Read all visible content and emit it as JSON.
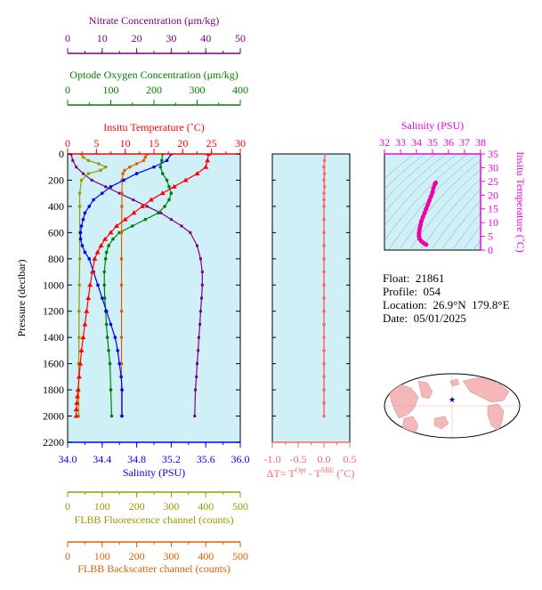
{
  "info": {
    "float": "Float:  21861",
    "profile": "Profile:  054",
    "location": "Location:  26.9°N  179.8°E",
    "date": "Date:  05/01/2025"
  },
  "colors": {
    "temperature": "#ff0000",
    "salinity": "#0000ff",
    "nitrate": "#800080",
    "oxygen": "#008000",
    "fluorescence": "#999900",
    "backscatter": "#e06000",
    "delta": "#ff6666",
    "ts_axis": "#ee00ee",
    "panel_bg": "#d0f0f8"
  },
  "chart_data": [
    {
      "type": "line",
      "name": "main-profile",
      "ylabel": "Pressure (decibar)",
      "ylim": [
        0,
        2200
      ],
      "y_ticks": [
        "0",
        "200",
        "400",
        "600",
        "800",
        "1000",
        "1200",
        "1400",
        "1600",
        "1800",
        "2000",
        "2200"
      ],
      "axes": {
        "nitrate": {
          "label": "Nitrate Concentration (μm/kg)",
          "lim": [
            0,
            50
          ],
          "ticks": [
            "0",
            "10",
            "20",
            "30",
            "40",
            "50"
          ]
        },
        "oxygen": {
          "label": "Optode Oxygen Concentration (μm/kg)",
          "lim": [
            0,
            400
          ],
          "ticks": [
            "0",
            "100",
            "200",
            "300",
            "400"
          ]
        },
        "temperature": {
          "label": "Insitu Temperature (˚C)",
          "lim": [
            0,
            30
          ],
          "ticks": [
            "0",
            "5",
            "10",
            "15",
            "20",
            "25",
            "30"
          ]
        },
        "salinity": {
          "label": "Salinity (PSU)",
          "lim": [
            34.0,
            36.0
          ],
          "ticks": [
            "34.0",
            "34.4",
            "34.8",
            "35.2",
            "35.6",
            "36.0"
          ]
        },
        "fluorescence": {
          "label": "FLBB Fluorescence channel (counts)",
          "lim": [
            0,
            500
          ],
          "ticks": [
            "0",
            "100",
            "200",
            "300",
            "400",
            "500"
          ]
        },
        "backscatter": {
          "label": "FLBB Backscatter channel (counts)",
          "lim": [
            0,
            500
          ],
          "ticks": [
            "0",
            "100",
            "200",
            "300",
            "400",
            "500"
          ]
        }
      },
      "series": {
        "temperature": {
          "x": [
            24.5,
            24.3,
            24.0,
            22.5,
            20.5,
            18.5,
            16.5,
            14.5,
            13.0,
            11.5,
            10.0,
            8.5,
            7.5,
            6.5,
            5.8,
            5.2,
            4.7,
            4.3,
            3.9,
            3.6,
            3.3,
            3.0,
            2.7,
            2.4,
            2.2,
            2.0,
            1.8,
            1.7,
            1.6,
            1.5,
            1.5
          ],
          "y": [
            0,
            50,
            100,
            150,
            200,
            250,
            300,
            350,
            400,
            450,
            500,
            550,
            600,
            650,
            700,
            750,
            800,
            900,
            1000,
            1100,
            1200,
            1300,
            1400,
            1500,
            1600,
            1700,
            1800,
            1850,
            1900,
            1950,
            2000
          ]
        },
        "salinity": {
          "x": [
            35.2,
            35.15,
            35.0,
            34.8,
            34.65,
            34.5,
            34.4,
            34.3,
            34.25,
            34.2,
            34.18,
            34.16,
            34.15,
            34.15,
            34.17,
            34.2,
            34.25,
            34.3,
            34.35,
            34.4,
            34.45,
            34.5,
            34.55,
            34.58,
            34.6,
            34.62,
            34.63,
            34.63
          ],
          "y": [
            0,
            50,
            100,
            150,
            200,
            250,
            300,
            350,
            400,
            450,
            500,
            550,
            600,
            650,
            700,
            750,
            800,
            900,
            1000,
            1100,
            1200,
            1300,
            1400,
            1500,
            1600,
            1700,
            1800,
            2000
          ]
        },
        "nitrate": {
          "x": [
            1.0,
            1.5,
            2.5,
            4.5,
            7.0,
            11.0,
            15.0,
            19.0,
            23.0,
            27.0,
            30.0,
            33.0,
            35.5,
            37.5,
            38.5,
            39.0,
            39.0,
            38.8,
            38.5,
            38.3,
            38.0,
            37.8,
            37.5,
            37.3,
            37.0,
            36.8
          ],
          "y": [
            0,
            50,
            100,
            150,
            200,
            250,
            300,
            350,
            400,
            450,
            500,
            550,
            600,
            700,
            800,
            900,
            1000,
            1100,
            1200,
            1300,
            1400,
            1500,
            1600,
            1700,
            1800,
            2000
          ]
        },
        "oxygen": {
          "x": [
            220,
            218,
            215,
            220,
            230,
            235,
            240,
            235,
            225,
            210,
            180,
            150,
            120,
            105,
            95,
            90,
            88,
            85,
            85,
            86,
            88,
            90,
            92,
            95,
            98,
            100,
            102
          ],
          "y": [
            0,
            50,
            100,
            150,
            200,
            250,
            300,
            350,
            400,
            450,
            500,
            550,
            600,
            650,
            700,
            750,
            800,
            900,
            1000,
            1100,
            1200,
            1300,
            1400,
            1500,
            1600,
            1800,
            2000
          ]
        },
        "fluorescence": {
          "x": [
            40,
            45,
            60,
            90,
            110,
            95,
            60,
            40,
            35,
            35,
            35,
            35,
            34,
            33,
            33,
            32,
            32,
            32
          ],
          "y": [
            0,
            25,
            50,
            75,
            100,
            125,
            150,
            200,
            300,
            400,
            600,
            800,
            1000,
            1200,
            1400,
            1600,
            1800,
            2000
          ]
        },
        "backscatter": {
          "x": [
            230,
            225,
            220,
            200,
            180,
            165,
            160,
            158,
            157,
            157,
            156,
            156,
            156,
            156,
            156,
            156,
            156
          ],
          "y": [
            0,
            25,
            50,
            75,
            100,
            125,
            150,
            200,
            300,
            400,
            600,
            800,
            1000,
            1200,
            1400,
            1600,
            2000
          ]
        },
        "delta": {
          "x": [
            0.02,
            0.01,
            0.0,
            0.01,
            0.0,
            0.01,
            0.0,
            0.0,
            0.0,
            0.0,
            0.0,
            0.0,
            0.0,
            0.0,
            0.0,
            0.0,
            0.0,
            0.0,
            0.0,
            0.0,
            0.0,
            0.0,
            0.0,
            0.0,
            0.0
          ],
          "y": [
            0,
            50,
            100,
            150,
            200,
            250,
            300,
            350,
            400,
            500,
            600,
            700,
            800,
            900,
            1000,
            1100,
            1200,
            1300,
            1400,
            1500,
            1600,
            1700,
            1800,
            1900,
            2000
          ]
        }
      }
    },
    {
      "type": "line",
      "name": "delta-t",
      "xlabel": "ΔT= T",
      "xlabel_sup1": "Opt",
      "xlabel_mid": " - T",
      "xlabel_sup2": "SBE",
      "xlabel_unit": " (˚C)",
      "xlim": [
        -1.0,
        0.5
      ],
      "x_ticks": [
        "-1.0",
        "-0.5",
        "0.0",
        "0.5"
      ]
    },
    {
      "type": "scatter",
      "name": "ts-diagram",
      "xlabel": "Salinity (PSU)",
      "ylabel": "Insitu Temperature (˚C)",
      "xlim": [
        32,
        38
      ],
      "ylim": [
        0,
        35
      ],
      "x_ticks": [
        "32",
        "33",
        "34",
        "35",
        "36",
        "37",
        "38"
      ],
      "y_ticks": [
        "0",
        "5",
        "10",
        "15",
        "20",
        "25",
        "30",
        "35"
      ],
      "points": {
        "salinity": [
          35.2,
          35.15,
          35.05,
          35.0,
          34.9,
          34.8,
          34.7,
          34.6,
          34.5,
          34.4,
          34.3,
          34.25,
          34.2,
          34.18,
          34.15,
          34.16,
          34.2,
          34.3,
          34.45,
          34.6
        ],
        "temperature": [
          24.5,
          24.0,
          22.5,
          21.0,
          19.5,
          18.0,
          16.5,
          15.0,
          13.5,
          12.0,
          10.5,
          9.0,
          8.0,
          7.0,
          6.0,
          5.0,
          4.0,
          3.2,
          2.5,
          2.0
        ]
      }
    }
  ]
}
